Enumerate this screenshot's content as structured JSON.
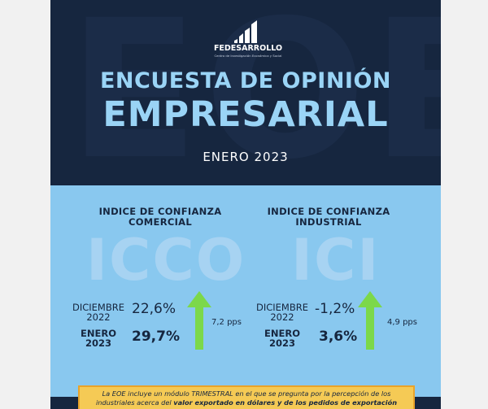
{
  "header": {
    "background_letters": "EOE",
    "logo_name": "FEDESARROLLO",
    "logo_subtitle": "Centro de Investigación Económica y Social",
    "title_line1": "ENCUESTA DE OPINIÓN",
    "title_line2": "EMPRESARIAL",
    "date": "ENERO 2023"
  },
  "colors": {
    "navy": "#16263f",
    "light_blue": "#89c8ef",
    "title_blue": "#9ad4f6",
    "arrow_green": "#7cd84a",
    "note_yellow": "#f5ca55"
  },
  "indices": [
    {
      "title": "INDICE DE CONFIANZA COMERCIAL",
      "acronym": "ICCO",
      "prev_label": "DICIEMBRE 2022",
      "prev_value": "22,6%",
      "curr_label": "ENERO 2023",
      "curr_value": "29,7%",
      "change": "7,2 pps",
      "arrow_icon": "arrow-up-icon"
    },
    {
      "title": "INDICE DE CONFIANZA INDUSTRIAL",
      "acronym": "ICI",
      "prev_label": "DICIEMBRE 2022",
      "prev_value": "-1,2%",
      "curr_label": "ENERO 2023",
      "curr_value": "3,6%",
      "change": "4,9 pps",
      "arrow_icon": "arrow-up-icon"
    }
  ],
  "note": {
    "line1": "La EOE incluye un módulo TRIMESTRAL en el que se pregunta por la percepción de los",
    "line2_start": "industriales acerca del ",
    "line2_bold": "valor exportado en dólares y de los pedidos de exportación"
  }
}
